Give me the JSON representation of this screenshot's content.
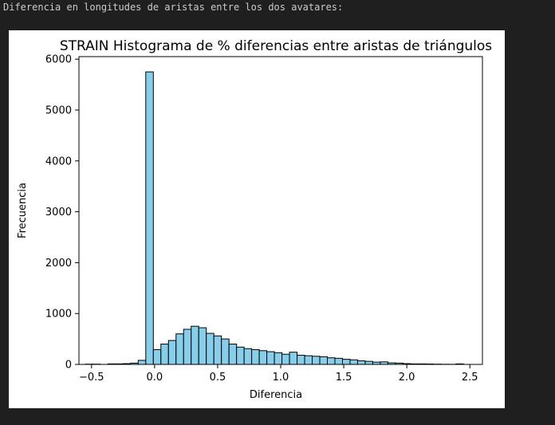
{
  "output": {
    "text": "Diferencia en longitudes de aristas entre los dos avatares:"
  },
  "colors": {
    "bar_fill": "#87ceeb",
    "bar_edge": "#000000",
    "background": "#1f1f1f",
    "figure_bg": "#ffffff",
    "console_text": "#cccccc"
  },
  "chart_data": {
    "type": "bar",
    "subtype": "histogram",
    "title": "STRAIN Histograma de % diferencias entre aristas de triángulos",
    "xlabel": "Diferencia",
    "ylabel": "Frecuencia",
    "xlim": [
      -0.6,
      2.6
    ],
    "ylim": [
      0,
      6050
    ],
    "xticks": [
      -0.5,
      0.0,
      0.5,
      1.0,
      1.5,
      2.0,
      2.5
    ],
    "xtick_labels": [
      "−0.5",
      "0.0",
      "0.5",
      "1.0",
      "1.5",
      "2.0",
      "2.5"
    ],
    "yticks": [
      0,
      1000,
      2000,
      3000,
      4000,
      5000,
      6000
    ],
    "ytick_labels": [
      "0",
      "1000",
      "2000",
      "3000",
      "4000",
      "5000",
      "6000"
    ],
    "grid": false,
    "legend": "none",
    "bin_start": -0.55,
    "bin_width": 0.06,
    "values": [
      5,
      5,
      0,
      10,
      10,
      15,
      25,
      80,
      5750,
      290,
      400,
      470,
      600,
      690,
      750,
      720,
      610,
      560,
      500,
      400,
      340,
      310,
      290,
      270,
      250,
      230,
      200,
      240,
      180,
      170,
      160,
      150,
      130,
      120,
      100,
      90,
      70,
      60,
      45,
      50,
      30,
      25,
      15,
      10,
      10,
      8,
      5,
      3,
      2,
      10
    ]
  }
}
